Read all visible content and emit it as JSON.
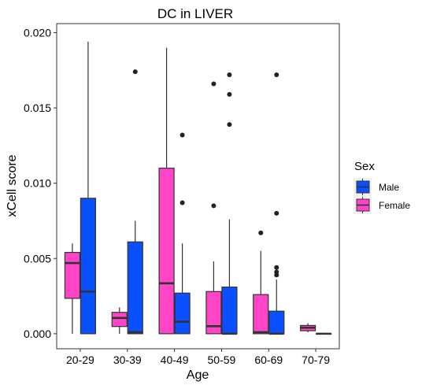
{
  "chart_data": {
    "type": "boxplot",
    "title": "DC in LIVER",
    "xlabel": "Age",
    "ylabel": "xCell score",
    "categories": [
      "20-29",
      "30-39",
      "40-49",
      "50-59",
      "60-69",
      "70-79"
    ],
    "ylim": [
      -0.001,
      0.0206
    ],
    "yticks": [
      0.0,
      0.005,
      0.01,
      0.015,
      0.02
    ],
    "ytick_labels": [
      "0.000",
      "0.005",
      "0.010",
      "0.015",
      "0.020"
    ],
    "legend": {
      "title": "Sex",
      "position": "right",
      "entries": [
        {
          "name": "Male",
          "color": "#0a50ff"
        },
        {
          "name": "Female",
          "color": "#ff44c8"
        }
      ]
    },
    "series": [
      {
        "name": "Female",
        "color": "#ff44c8",
        "boxes": [
          {
            "category": "20-29",
            "whisker_low": 0.0,
            "q1": 0.00235,
            "median": 0.0047,
            "q3": 0.0054,
            "whisker_high": 0.006,
            "outliers": []
          },
          {
            "category": "30-39",
            "whisker_low": 0.0,
            "q1": 0.00048,
            "median": 0.00105,
            "q3": 0.00142,
            "whisker_high": 0.00175,
            "outliers": []
          },
          {
            "category": "40-49",
            "whisker_low": 0.0,
            "q1": 0.0,
            "median": 0.00335,
            "q3": 0.011,
            "whisker_high": 0.019,
            "outliers": []
          },
          {
            "category": "50-59",
            "whisker_low": 0.0,
            "q1": 0.0,
            "median": 0.0005,
            "q3": 0.0028,
            "whisker_high": 0.0048,
            "outliers": [
              0.0085,
              0.0166
            ]
          },
          {
            "category": "60-69",
            "whisker_low": 0.0,
            "q1": 0.0,
            "median": 0.0001,
            "q3": 0.0026,
            "whisker_high": 0.0055,
            "outliers": [
              0.0067
            ]
          },
          {
            "category": "70-79",
            "whisker_low": 0.0001,
            "q1": 0.0002,
            "median": 0.0004,
            "q3": 0.00055,
            "whisker_high": 0.0007,
            "outliers": []
          }
        ]
      },
      {
        "name": "Male",
        "color": "#0a50ff",
        "boxes": [
          {
            "category": "20-29",
            "whisker_low": 0.0,
            "q1": 0.0,
            "median": 0.0028,
            "q3": 0.009,
            "whisker_high": 0.0194,
            "outliers": []
          },
          {
            "category": "30-39",
            "whisker_low": 0.0,
            "q1": 0.0,
            "median": 0.0001,
            "q3": 0.0061,
            "whisker_high": 0.0075,
            "outliers": [
              0.0174
            ]
          },
          {
            "category": "40-49",
            "whisker_low": 0.0,
            "q1": 0.0,
            "median": 0.0008,
            "q3": 0.0027,
            "whisker_high": 0.006,
            "outliers": [
              0.0087,
              0.0132
            ]
          },
          {
            "category": "50-59",
            "whisker_low": 0.0,
            "q1": 0.0,
            "median": 0.0,
            "q3": 0.0031,
            "whisker_high": 0.0076,
            "outliers": [
              0.0139,
              0.0159,
              0.0172
            ]
          },
          {
            "category": "60-69",
            "whisker_low": 0.0,
            "q1": 0.0,
            "median": 0.0,
            "q3": 0.0015,
            "whisker_high": 0.0036,
            "outliers": [
              0.0039,
              0.0041,
              0.0044,
              0.008,
              0.0172
            ]
          },
          {
            "category": "70-79",
            "whisker_low": 0.0,
            "q1": 0.0,
            "median": 0.0,
            "q3": 0.0,
            "whisker_high": 0.0,
            "outliers": []
          }
        ]
      }
    ]
  }
}
